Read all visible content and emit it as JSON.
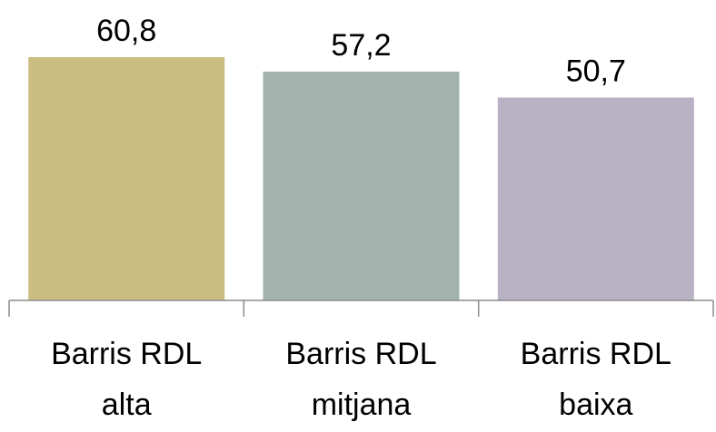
{
  "chart_data": {
    "type": "bar",
    "categories": [
      [
        "Barris RDL",
        "alta"
      ],
      [
        "Barris RDL",
        "mitjana"
      ],
      [
        "Barris RDL",
        "baixa"
      ]
    ],
    "values": [
      60.8,
      57.2,
      50.7
    ],
    "value_labels": [
      "60,8",
      "57,2",
      "50,7"
    ],
    "colors": [
      "#cbbd82",
      "#a2b3ae",
      "#b9b1c4"
    ],
    "title": "",
    "xlabel": "",
    "ylabel": "",
    "ylim": [
      0,
      60.8
    ],
    "grid": false,
    "legend": "none"
  }
}
